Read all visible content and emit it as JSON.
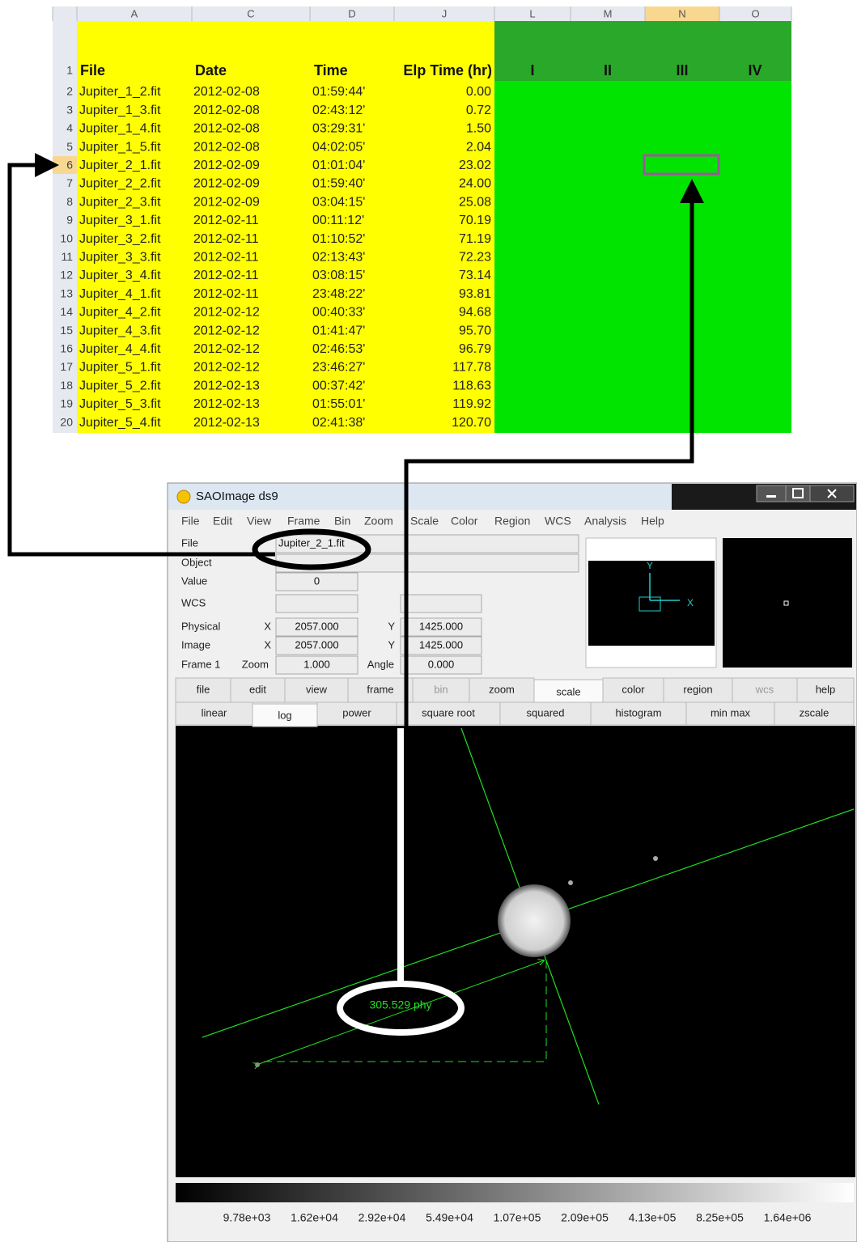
{
  "spreadsheet": {
    "column_headers": [
      "A",
      "C",
      "D",
      "J",
      "L",
      "M",
      "N",
      "O"
    ],
    "header_row": [
      "File",
      "Date",
      "Time",
      "Elp Time (hr)",
      "I",
      "II",
      "III",
      "IV"
    ],
    "row_numbers": [
      "1",
      "2",
      "3",
      "4",
      "5",
      "6",
      "7",
      "8",
      "9",
      "10",
      "11",
      "12",
      "13",
      "14",
      "15",
      "16",
      "17",
      "18",
      "19",
      "20"
    ],
    "rows": [
      [
        "Jupiter_1_2.fit",
        "2012-02-08",
        "01:59:44'",
        "0.00"
      ],
      [
        "Jupiter_1_3.fit",
        "2012-02-08",
        "02:43:12'",
        "0.72"
      ],
      [
        "Jupiter_1_4.fit",
        "2012-02-08",
        "03:29:31'",
        "1.50"
      ],
      [
        "Jupiter_1_5.fit",
        "2012-02-08",
        "04:02:05'",
        "2.04"
      ],
      [
        "Jupiter_2_1.fit",
        "2012-02-09",
        "01:01:04'",
        "23.02"
      ],
      [
        "Jupiter_2_2.fit",
        "2012-02-09",
        "01:59:40'",
        "24.00"
      ],
      [
        "Jupiter_2_3.fit",
        "2012-02-09",
        "03:04:15'",
        "25.08"
      ],
      [
        "Jupiter_3_1.fit",
        "2012-02-11",
        "00:11:12'",
        "70.19"
      ],
      [
        "Jupiter_3_2.fit",
        "2012-02-11",
        "01:10:52'",
        "71.19"
      ],
      [
        "Jupiter_3_3.fit",
        "2012-02-11",
        "02:13:43'",
        "72.23"
      ],
      [
        "Jupiter_3_4.fit",
        "2012-02-11",
        "03:08:15'",
        "73.14"
      ],
      [
        "Jupiter_4_1.fit",
        "2012-02-11",
        "23:48:22'",
        "93.81"
      ],
      [
        "Jupiter_4_2.fit",
        "2012-02-12",
        "00:40:33'",
        "94.68"
      ],
      [
        "Jupiter_4_3.fit",
        "2012-02-12",
        "01:41:47'",
        "95.70"
      ],
      [
        "Jupiter_4_4.fit",
        "2012-02-12",
        "02:46:53'",
        "96.79"
      ],
      [
        "Jupiter_5_1.fit",
        "2012-02-12",
        "23:46:27'",
        "117.78"
      ],
      [
        "Jupiter_5_2.fit",
        "2012-02-13",
        "00:37:42'",
        "118.63"
      ],
      [
        "Jupiter_5_3.fit",
        "2012-02-13",
        "01:55:01'",
        "119.92"
      ],
      [
        "Jupiter_5_4.fit",
        "2012-02-13",
        "02:41:38'",
        "120.70"
      ]
    ]
  },
  "ds9": {
    "title": "SAOImage ds9",
    "menu": [
      "File",
      "Edit",
      "View",
      "Frame",
      "Bin",
      "Zoom",
      "Scale",
      "Color",
      "Region",
      "WCS",
      "Analysis",
      "Help"
    ],
    "info": {
      "file_label": "File",
      "file": "Jupiter_2_1.fit",
      "object_label": "Object",
      "value_label": "Value",
      "value": "0",
      "wcs_label": "WCS",
      "physical_label": "Physical",
      "physical_x_label": "X",
      "physical_x": "2057.000",
      "physical_y_label": "Y",
      "physical_y": "1425.000",
      "image_label": "Image",
      "image_x_label": "X",
      "image_x": "2057.000",
      "image_y_label": "Y",
      "image_y": "1425.000",
      "frame_label": "Frame 1",
      "zoom_label": "Zoom",
      "zoom": "1.000",
      "angle_label": "Angle",
      "angle": "0.000"
    },
    "panner_x": "X",
    "panner_y": "Y",
    "buttons": [
      "file",
      "edit",
      "view",
      "frame",
      "bin",
      "zoom",
      "scale",
      "color",
      "region",
      "wcs",
      "help"
    ],
    "scale_buttons": [
      "linear",
      "log",
      "power",
      "square root",
      "squared",
      "histogram",
      "min max",
      "zscale"
    ],
    "measurement": "305.529 phy",
    "colorbar_labels": [
      "9.78e+03",
      "1.62e+04",
      "2.92e+04",
      "5.49e+04",
      "1.07e+05",
      "2.09e+05",
      "4.13e+05",
      "8.25e+05",
      "1.64e+06"
    ]
  }
}
